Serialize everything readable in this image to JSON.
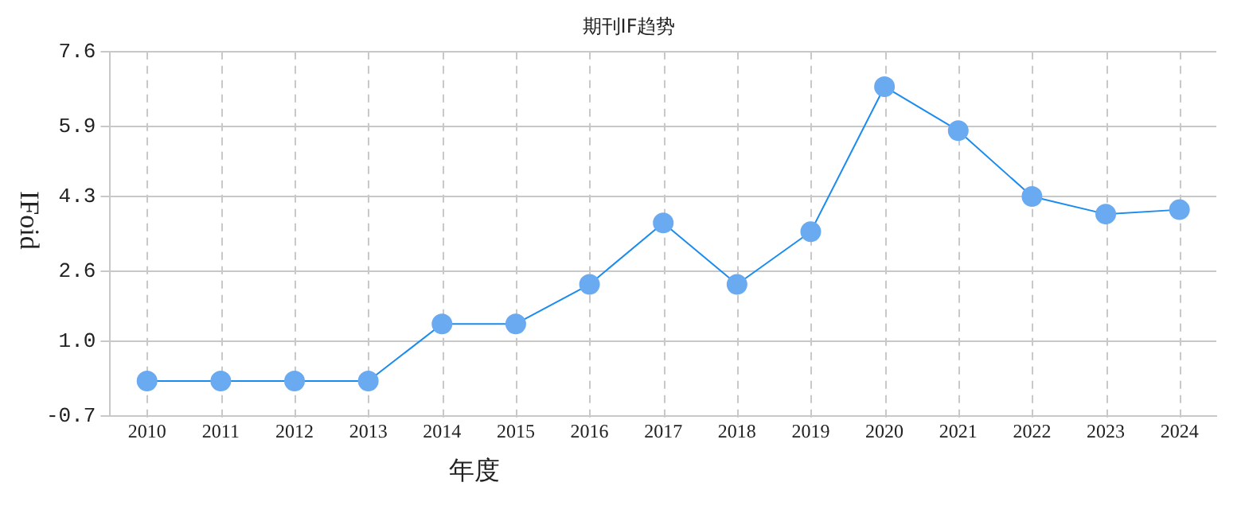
{
  "chart_data": {
    "type": "line",
    "title": "期刊IF趋势",
    "xlabel": "年度",
    "ylabel": "IFoid",
    "categories": [
      "2010",
      "2011",
      "2012",
      "2013",
      "2014",
      "2015",
      "2016",
      "2017",
      "2018",
      "2019",
      "2020",
      "2021",
      "2022",
      "2023",
      "2024"
    ],
    "series": [
      {
        "color": "#1a8cf0",
        "values": [
          0.1,
          0.1,
          0.1,
          0.1,
          1.4,
          1.4,
          2.3,
          3.7,
          2.3,
          3.5,
          6.8,
          5.8,
          4.3,
          3.9,
          4.0
        ]
      }
    ],
    "ylim": [
      -0.7,
      7.6
    ],
    "yticks": [
      -0.7,
      {
        "value": 1,
        "label": "1.0"
      },
      2.6,
      4.3,
      5.9,
      7.6
    ],
    "grid": true,
    "marker": "circle",
    "line_style": "solid"
  }
}
